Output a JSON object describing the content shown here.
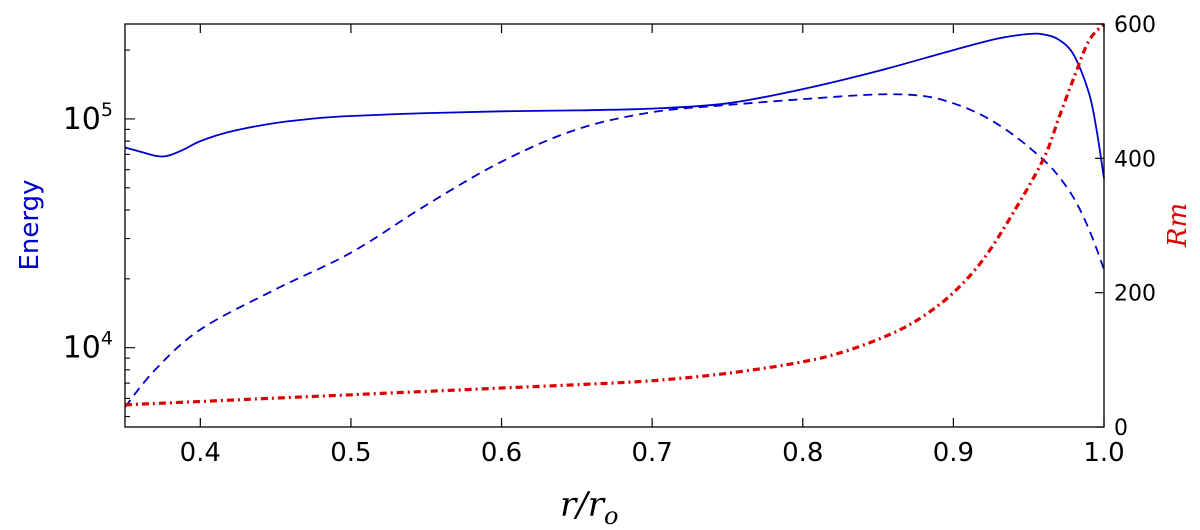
{
  "chart_data": {
    "type": "line",
    "title": "",
    "xlabel": {
      "main": "r/r",
      "sub": "o"
    },
    "ylabel_left": "Energy",
    "ylabel_right": "Rm",
    "xlim": [
      0.35,
      1.0
    ],
    "ylim_left": [
      4500,
      260000
    ],
    "yscale_left": "log",
    "ylim_right": [
      0,
      600
    ],
    "yscale_right": "linear",
    "grid": false,
    "colors": {
      "energy": "#0000cc",
      "rm": "#dd0000"
    },
    "x_ticks": [
      "0.4",
      "0.5",
      "0.6",
      "0.7",
      "0.8",
      "0.9",
      "1.0"
    ],
    "x_tick_values": [
      0.4,
      0.5,
      0.6,
      0.7,
      0.8,
      0.9,
      1.0
    ],
    "y_left_ticks": [
      {
        "value": 10000,
        "base": "10",
        "exp": "4"
      },
      {
        "value": 100000,
        "base": "10",
        "exp": "5"
      }
    ],
    "y_right_ticks": [
      "0",
      "200",
      "400",
      "600"
    ],
    "y_right_tick_values": [
      0,
      200,
      400,
      600
    ],
    "series": [
      {
        "style": "solid",
        "axis": "left",
        "color": "#0000cc",
        "x": [
          0.35,
          0.36,
          0.37,
          0.375,
          0.38,
          0.39,
          0.4,
          0.42,
          0.45,
          0.48,
          0.5,
          0.55,
          0.6,
          0.65,
          0.7,
          0.75,
          0.8,
          0.85,
          0.9,
          0.93,
          0.95,
          0.96,
          0.97,
          0.98,
          0.99,
          0.995,
          1.0
        ],
        "y": [
          75000,
          72000,
          69000,
          68500,
          69500,
          74000,
          80000,
          88000,
          96000,
          101000,
          103000,
          106000,
          108000,
          109000,
          111000,
          117000,
          135000,
          162000,
          200000,
          225000,
          235000,
          234000,
          222000,
          190000,
          130000,
          90000,
          55000
        ]
      },
      {
        "style": "dashed",
        "axis": "left",
        "color": "#0000cc",
        "x": [
          0.35,
          0.37,
          0.4,
          0.45,
          0.5,
          0.55,
          0.6,
          0.65,
          0.7,
          0.75,
          0.8,
          0.85,
          0.88,
          0.9,
          0.92,
          0.94,
          0.96,
          0.97,
          0.98,
          0.99,
          1.0
        ],
        "y": [
          5500,
          8000,
          12000,
          18000,
          26000,
          42000,
          65000,
          90000,
          107000,
          115000,
          122000,
          128000,
          126000,
          117000,
          103000,
          85000,
          66000,
          56000,
          45000,
          33000,
          22000
        ]
      },
      {
        "style": "dash-dot",
        "axis": "right",
        "color": "#dd0000",
        "x": [
          0.35,
          0.4,
          0.45,
          0.5,
          0.55,
          0.6,
          0.65,
          0.7,
          0.75,
          0.8,
          0.83,
          0.86,
          0.88,
          0.9,
          0.92,
          0.94,
          0.96,
          0.97,
          0.98,
          0.99,
          1.0
        ],
        "y": [
          33,
          38,
          43,
          48,
          53,
          58,
          63,
          69,
          80,
          97,
          114,
          140,
          165,
          200,
          250,
          320,
          400,
          460,
          520,
          575,
          600
        ]
      }
    ]
  }
}
